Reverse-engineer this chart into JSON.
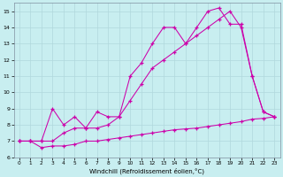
{
  "xlabel": "Windchill (Refroidissement éolien,°C)",
  "bg_color": "#c8eef0",
  "grid_color": "#b0d8dc",
  "line_color": "#cc00aa",
  "xlim": [
    -0.5,
    23.5
  ],
  "ylim": [
    6,
    15.5
  ],
  "xticks": [
    0,
    1,
    2,
    3,
    4,
    5,
    6,
    7,
    8,
    9,
    10,
    11,
    12,
    13,
    14,
    15,
    16,
    17,
    18,
    19,
    20,
    21,
    22,
    23
  ],
  "yticks": [
    6,
    7,
    8,
    9,
    10,
    11,
    12,
    13,
    14,
    15
  ],
  "line1_x": [
    0,
    1,
    2,
    3,
    4,
    5,
    6,
    7,
    8,
    9,
    10,
    11,
    12,
    13,
    14,
    15,
    16,
    17,
    18,
    19,
    20,
    21,
    22,
    23
  ],
  "line1_y": [
    7.0,
    7.0,
    6.6,
    6.7,
    6.7,
    6.8,
    7.0,
    7.0,
    7.1,
    7.2,
    7.3,
    7.4,
    7.5,
    7.6,
    7.7,
    7.75,
    7.8,
    7.9,
    8.0,
    8.1,
    8.2,
    8.35,
    8.4,
    8.5
  ],
  "line2_x": [
    0,
    1,
    2,
    3,
    4,
    5,
    6,
    7,
    8,
    9,
    10,
    11,
    12,
    13,
    14,
    15,
    16,
    17,
    18,
    19,
    20,
    21,
    22,
    23
  ],
  "line2_y": [
    7.0,
    7.0,
    7.0,
    7.0,
    7.5,
    7.8,
    7.8,
    7.8,
    8.0,
    8.5,
    9.5,
    10.5,
    11.5,
    12.0,
    12.5,
    13.0,
    13.5,
    14.0,
    14.5,
    15.0,
    14.0,
    11.0,
    8.8,
    8.5
  ],
  "line3_x": [
    0,
    1,
    2,
    3,
    4,
    5,
    6,
    7,
    8,
    9,
    10,
    11,
    12,
    13,
    14,
    15,
    16,
    17,
    18,
    19,
    20,
    21,
    22,
    23
  ],
  "line3_y": [
    7.0,
    7.0,
    7.0,
    9.0,
    8.0,
    8.5,
    7.8,
    8.8,
    8.5,
    8.5,
    11.0,
    11.8,
    13.0,
    14.0,
    14.0,
    13.0,
    14.0,
    15.0,
    15.2,
    14.2,
    14.2,
    11.0,
    8.8,
    8.5
  ]
}
